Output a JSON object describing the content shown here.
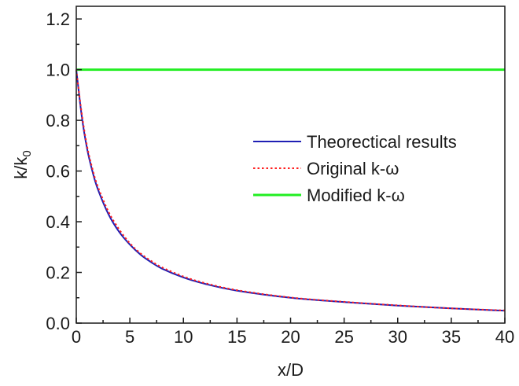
{
  "chart_data": {
    "type": "line",
    "title": "",
    "xlabel": "x/D",
    "ylabel": "k/k",
    "ylabel_subscript": "0",
    "xlim": [
      0,
      40
    ],
    "ylim": [
      0.0,
      1.25
    ],
    "x_ticks": [
      0,
      5,
      10,
      15,
      20,
      25,
      30,
      35,
      40
    ],
    "x_tick_labels": [
      "0",
      "5",
      "10",
      "15",
      "20",
      "25",
      "30",
      "35",
      "40"
    ],
    "y_ticks": [
      0.0,
      0.2,
      0.4,
      0.6,
      0.8,
      1.0,
      1.2
    ],
    "y_tick_labels": [
      "0.0",
      "0.2",
      "0.4",
      "0.6",
      "0.8",
      "1.0",
      "1.2"
    ],
    "grid": false,
    "legend_position": "right-middle",
    "x": [
      0,
      0.5,
      1,
      1.5,
      2,
      3,
      4,
      5,
      6,
      7,
      8,
      10,
      12,
      15,
      20,
      25,
      30,
      35,
      40
    ],
    "series": [
      {
        "name": "Theorectical results",
        "color": "#1f1fb4",
        "style": "solid",
        "values": [
          1.0,
          0.82,
          0.69,
          0.6,
          0.53,
          0.43,
          0.36,
          0.31,
          0.27,
          0.24,
          0.215,
          0.18,
          0.155,
          0.128,
          0.1,
          0.083,
          0.069,
          0.058,
          0.049
        ]
      },
      {
        "name": "Original k-ω",
        "color": "#ff2020",
        "style": "dotted",
        "values": [
          1.0,
          0.83,
          0.7,
          0.61,
          0.54,
          0.44,
          0.37,
          0.315,
          0.275,
          0.245,
          0.22,
          0.184,
          0.158,
          0.13,
          0.101,
          0.084,
          0.07,
          0.058,
          0.05
        ]
      },
      {
        "name": "Modified k-ω",
        "color": "#22ee22",
        "style": "solid",
        "values": [
          1.0,
          1.0,
          1.0,
          1.0,
          1.0,
          1.0,
          1.0,
          1.0,
          1.0,
          1.0,
          1.0,
          1.0,
          1.0,
          1.0,
          1.0,
          1.0,
          1.0,
          1.0,
          1.0
        ]
      }
    ]
  }
}
